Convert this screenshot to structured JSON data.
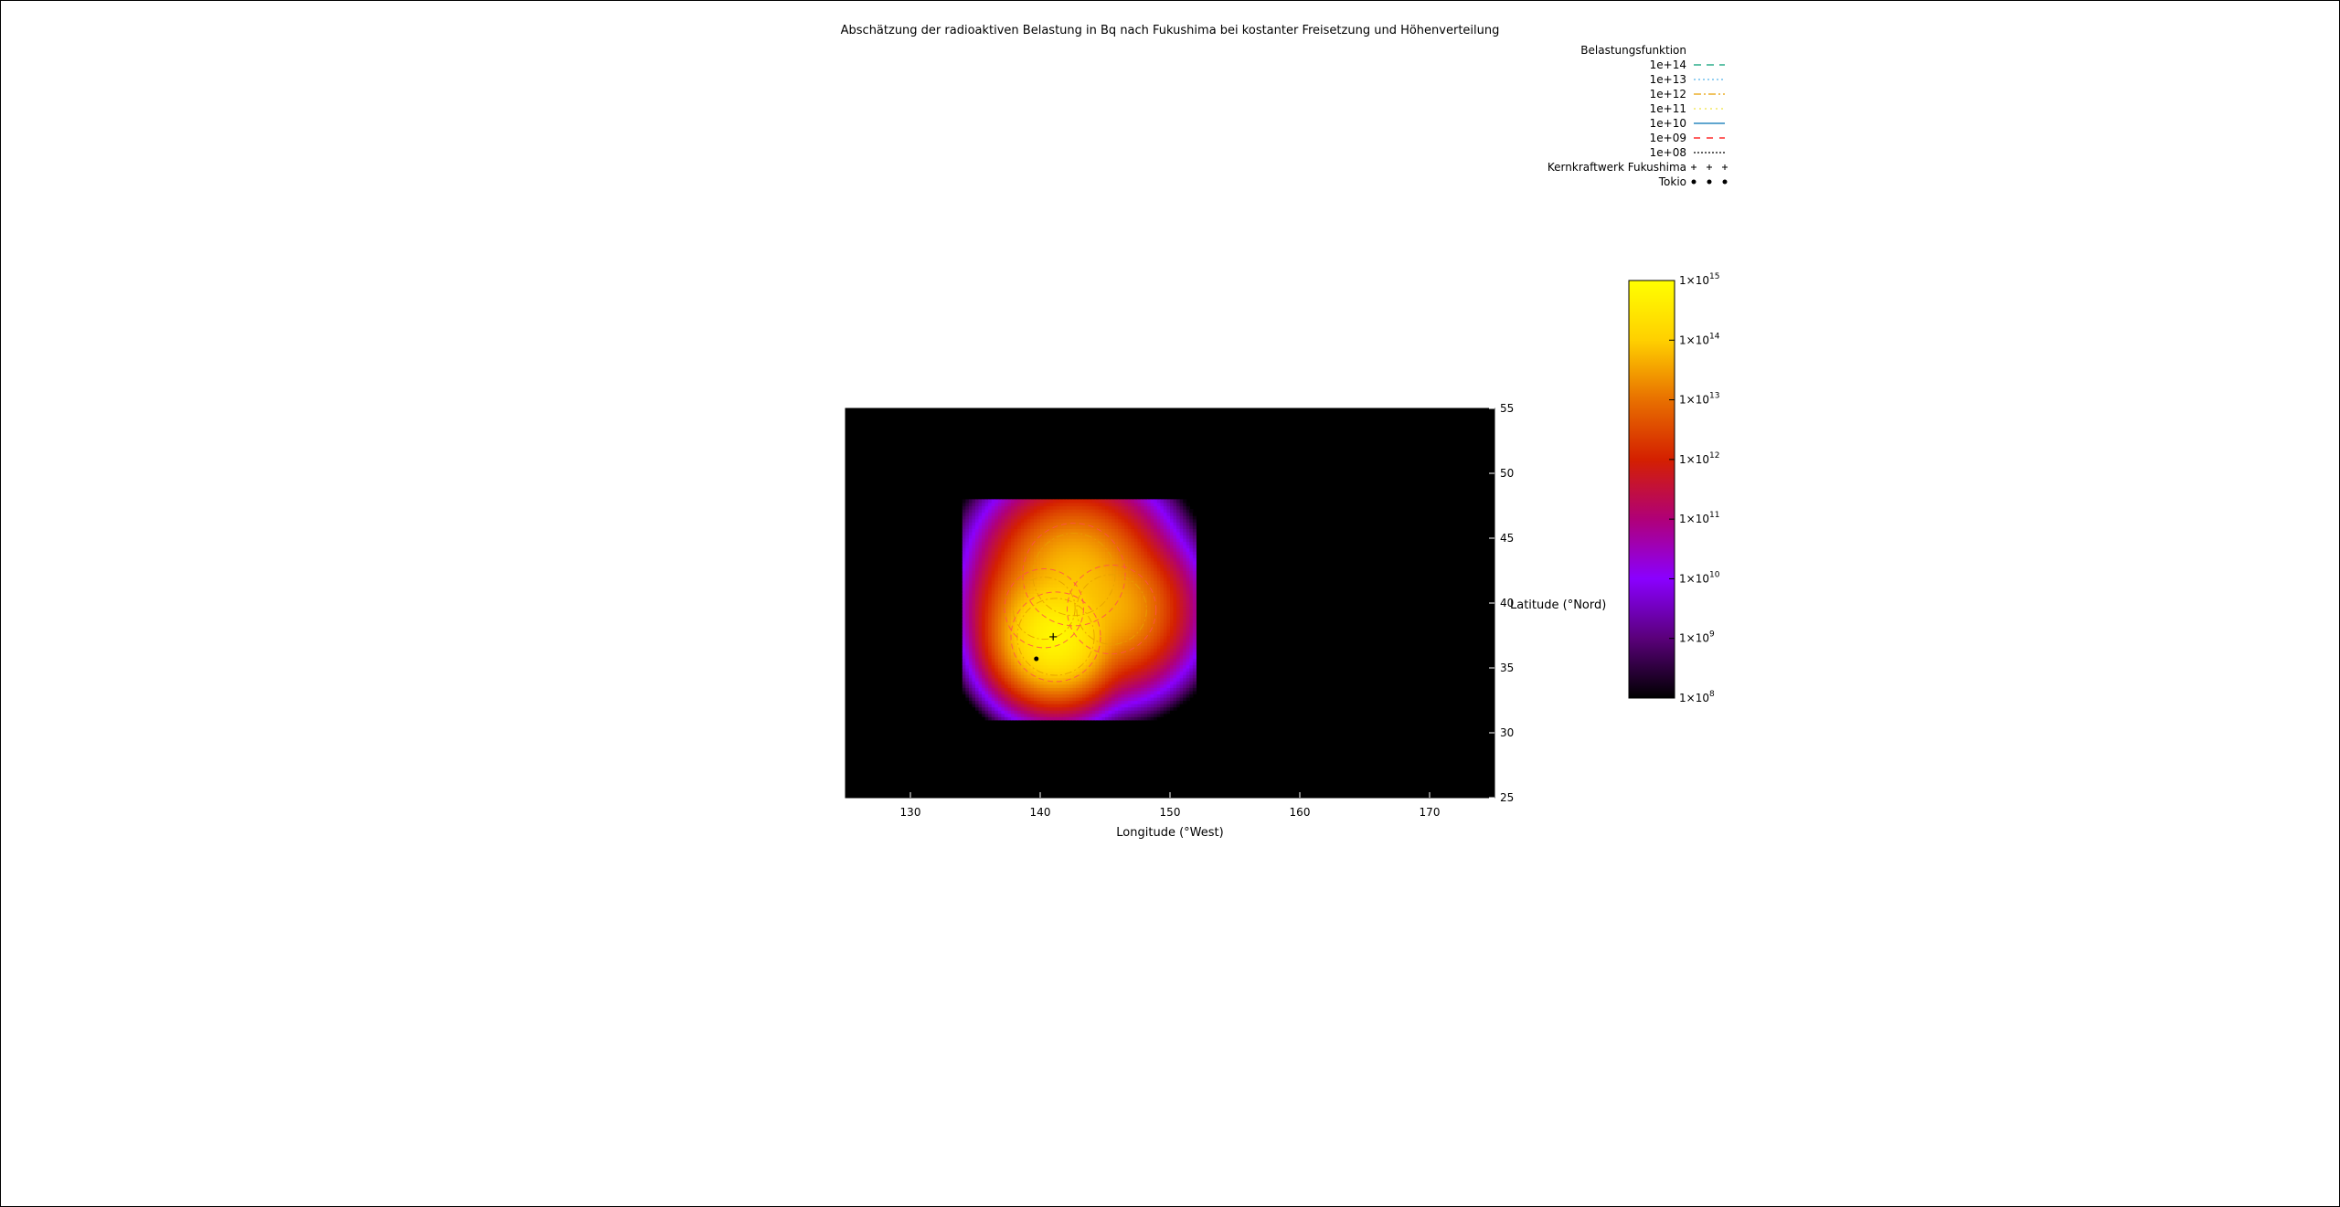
{
  "chart_data": {
    "type": "heatmap",
    "title": "Abschätzung der radioaktiven Belastung in Bq nach Fukushima bei kostanter Freisetzung und Höhenverteilung",
    "xlabel": "Longitude (°West)",
    "ylabel": "Latitude (°Nord)",
    "xlim": [
      125,
      175
    ],
    "ylim": [
      25,
      55
    ],
    "xticks": [
      130,
      140,
      150,
      160,
      170
    ],
    "yticks": [
      25,
      30,
      35,
      40,
      45,
      50,
      55
    ],
    "grid": false,
    "background": "#000000",
    "colorbar": {
      "scale": "log",
      "range": [
        100000000.0,
        1000000000000000.0
      ],
      "tick_exponents": [
        8,
        9,
        10,
        11,
        12,
        13,
        14,
        15
      ],
      "tick_base": "1×10",
      "palette": [
        "#000000",
        "#5a007a",
        "#8a00ff",
        "#b00078",
        "#d42000",
        "#e87000",
        "#ffd000",
        "#ffff00"
      ]
    },
    "legend": {
      "title": "Belastungsfunktion",
      "placement": "top-right",
      "contour_entries": [
        {
          "label": "1e+14",
          "color": "#009e73",
          "dash": "8,6"
        },
        {
          "label": "1e+13",
          "color": "#56b4e9",
          "dash": "2,3"
        },
        {
          "label": "1e+12",
          "color": "#e69f00",
          "dash": "8,3,2,3"
        },
        {
          "label": "1e+11",
          "color": "#f0e442",
          "dash": "2,4"
        },
        {
          "label": "1e+10",
          "color": "#0072b2",
          "dash": ""
        },
        {
          "label": "1e+09",
          "color": "#ff0000",
          "dash": "7,7"
        },
        {
          "label": "1e+08",
          "color": "#000000",
          "dash": "2,2"
        }
      ],
      "point_entries": [
        {
          "label": "Kernkraftwerk Fukushima",
          "symbol": "+"
        },
        {
          "label": "Tokio",
          "symbol": "●"
        }
      ]
    },
    "points": [
      {
        "name": "Kernkraftwerk Fukushima",
        "lon": 141.0,
        "lat": 37.4,
        "symbol": "+"
      },
      {
        "name": "Tokio",
        "lon": 139.7,
        "lat": 35.7,
        "symbol": "●"
      }
    ],
    "sources": [
      {
        "lon": 141.2,
        "lat": 37.4,
        "peak_exp": 14.8,
        "sigma": 1.5
      },
      {
        "lon": 142.6,
        "lat": 42.2,
        "peak_exp": 13.8,
        "sigma": 2.0
      },
      {
        "lon": 145.5,
        "lat": 39.5,
        "peak_exp": 13.6,
        "sigma": 1.8
      },
      {
        "lon": 140.3,
        "lat": 39.6,
        "peak_exp": 13.6,
        "sigma": 1.6
      }
    ]
  }
}
